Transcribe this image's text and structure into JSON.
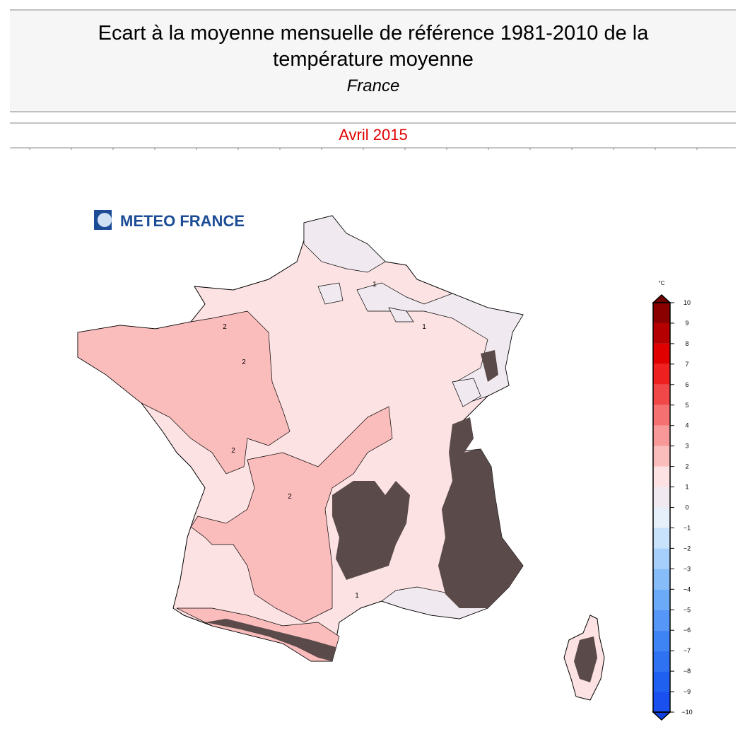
{
  "header": {
    "title_line1": "Ecart à la moyenne mensuelle de référence 1981-2010 de la",
    "title_line2": "température moyenne",
    "region": "France"
  },
  "period": "Avril 2015",
  "logo": "METEO FRANCE",
  "map": {
    "contour_labels": [
      "1",
      "2",
      "2",
      "2",
      "1",
      "2",
      "1"
    ]
  },
  "colorbar": {
    "unit": "°C",
    "lim": [
      -10,
      10
    ],
    "ticks": [
      {
        "value": -10,
        "label": "−10"
      },
      {
        "value": -9,
        "label": "−9"
      },
      {
        "value": -8,
        "label": "−8"
      },
      {
        "value": -7,
        "label": "−7"
      },
      {
        "value": -6,
        "label": "−6"
      },
      {
        "value": -5,
        "label": "−5"
      },
      {
        "value": -4,
        "label": "−4"
      },
      {
        "value": -3,
        "label": "−3"
      },
      {
        "value": -2,
        "label": "−2"
      },
      {
        "value": -1,
        "label": "−1"
      },
      0,
      1,
      2,
      3,
      4,
      5,
      6,
      7,
      8,
      9,
      10
    ],
    "colors": [
      "#1a4ff0",
      "#2060f0",
      "#2e72f2",
      "#3f84f4",
      "#5596f6",
      "#6aaaf8",
      "#86bdf9",
      "#a6d0fb",
      "#c8e2fc",
      "#e6f0fa",
      "#f0eaf0",
      "#fce2e2",
      "#fbbcbc",
      "#f99898",
      "#f57070",
      "#f04848",
      "#ee2020",
      "#e00000",
      "#b40000",
      "#8a0000"
    ],
    "under_color": "#1040e0",
    "over_color": "#700000"
  }
}
